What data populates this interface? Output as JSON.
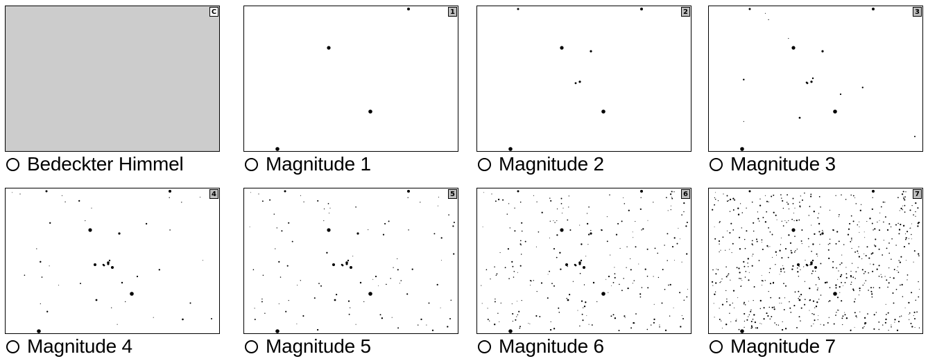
{
  "options": [
    {
      "label": "Bedeckter Himmel",
      "badge": "C",
      "level": 0
    },
    {
      "label": "Magnitude 1",
      "badge": "1",
      "level": 1
    },
    {
      "label": "Magnitude 2",
      "badge": "2",
      "level": 2
    },
    {
      "label": "Magnitude 3",
      "badge": "3",
      "level": 3
    },
    {
      "label": "Magnitude 4",
      "badge": "4",
      "level": 4
    },
    {
      "label": "Magnitude 5",
      "badge": "5",
      "level": 5
    },
    {
      "label": "Magnitude 6",
      "badge": "6",
      "level": 6
    },
    {
      "label": "Magnitude 7",
      "badge": "7",
      "level": 7
    }
  ],
  "colors": {
    "overcast_sky": "#cccccc",
    "star": "#000000",
    "badge_bg": "#bfbfbf"
  }
}
